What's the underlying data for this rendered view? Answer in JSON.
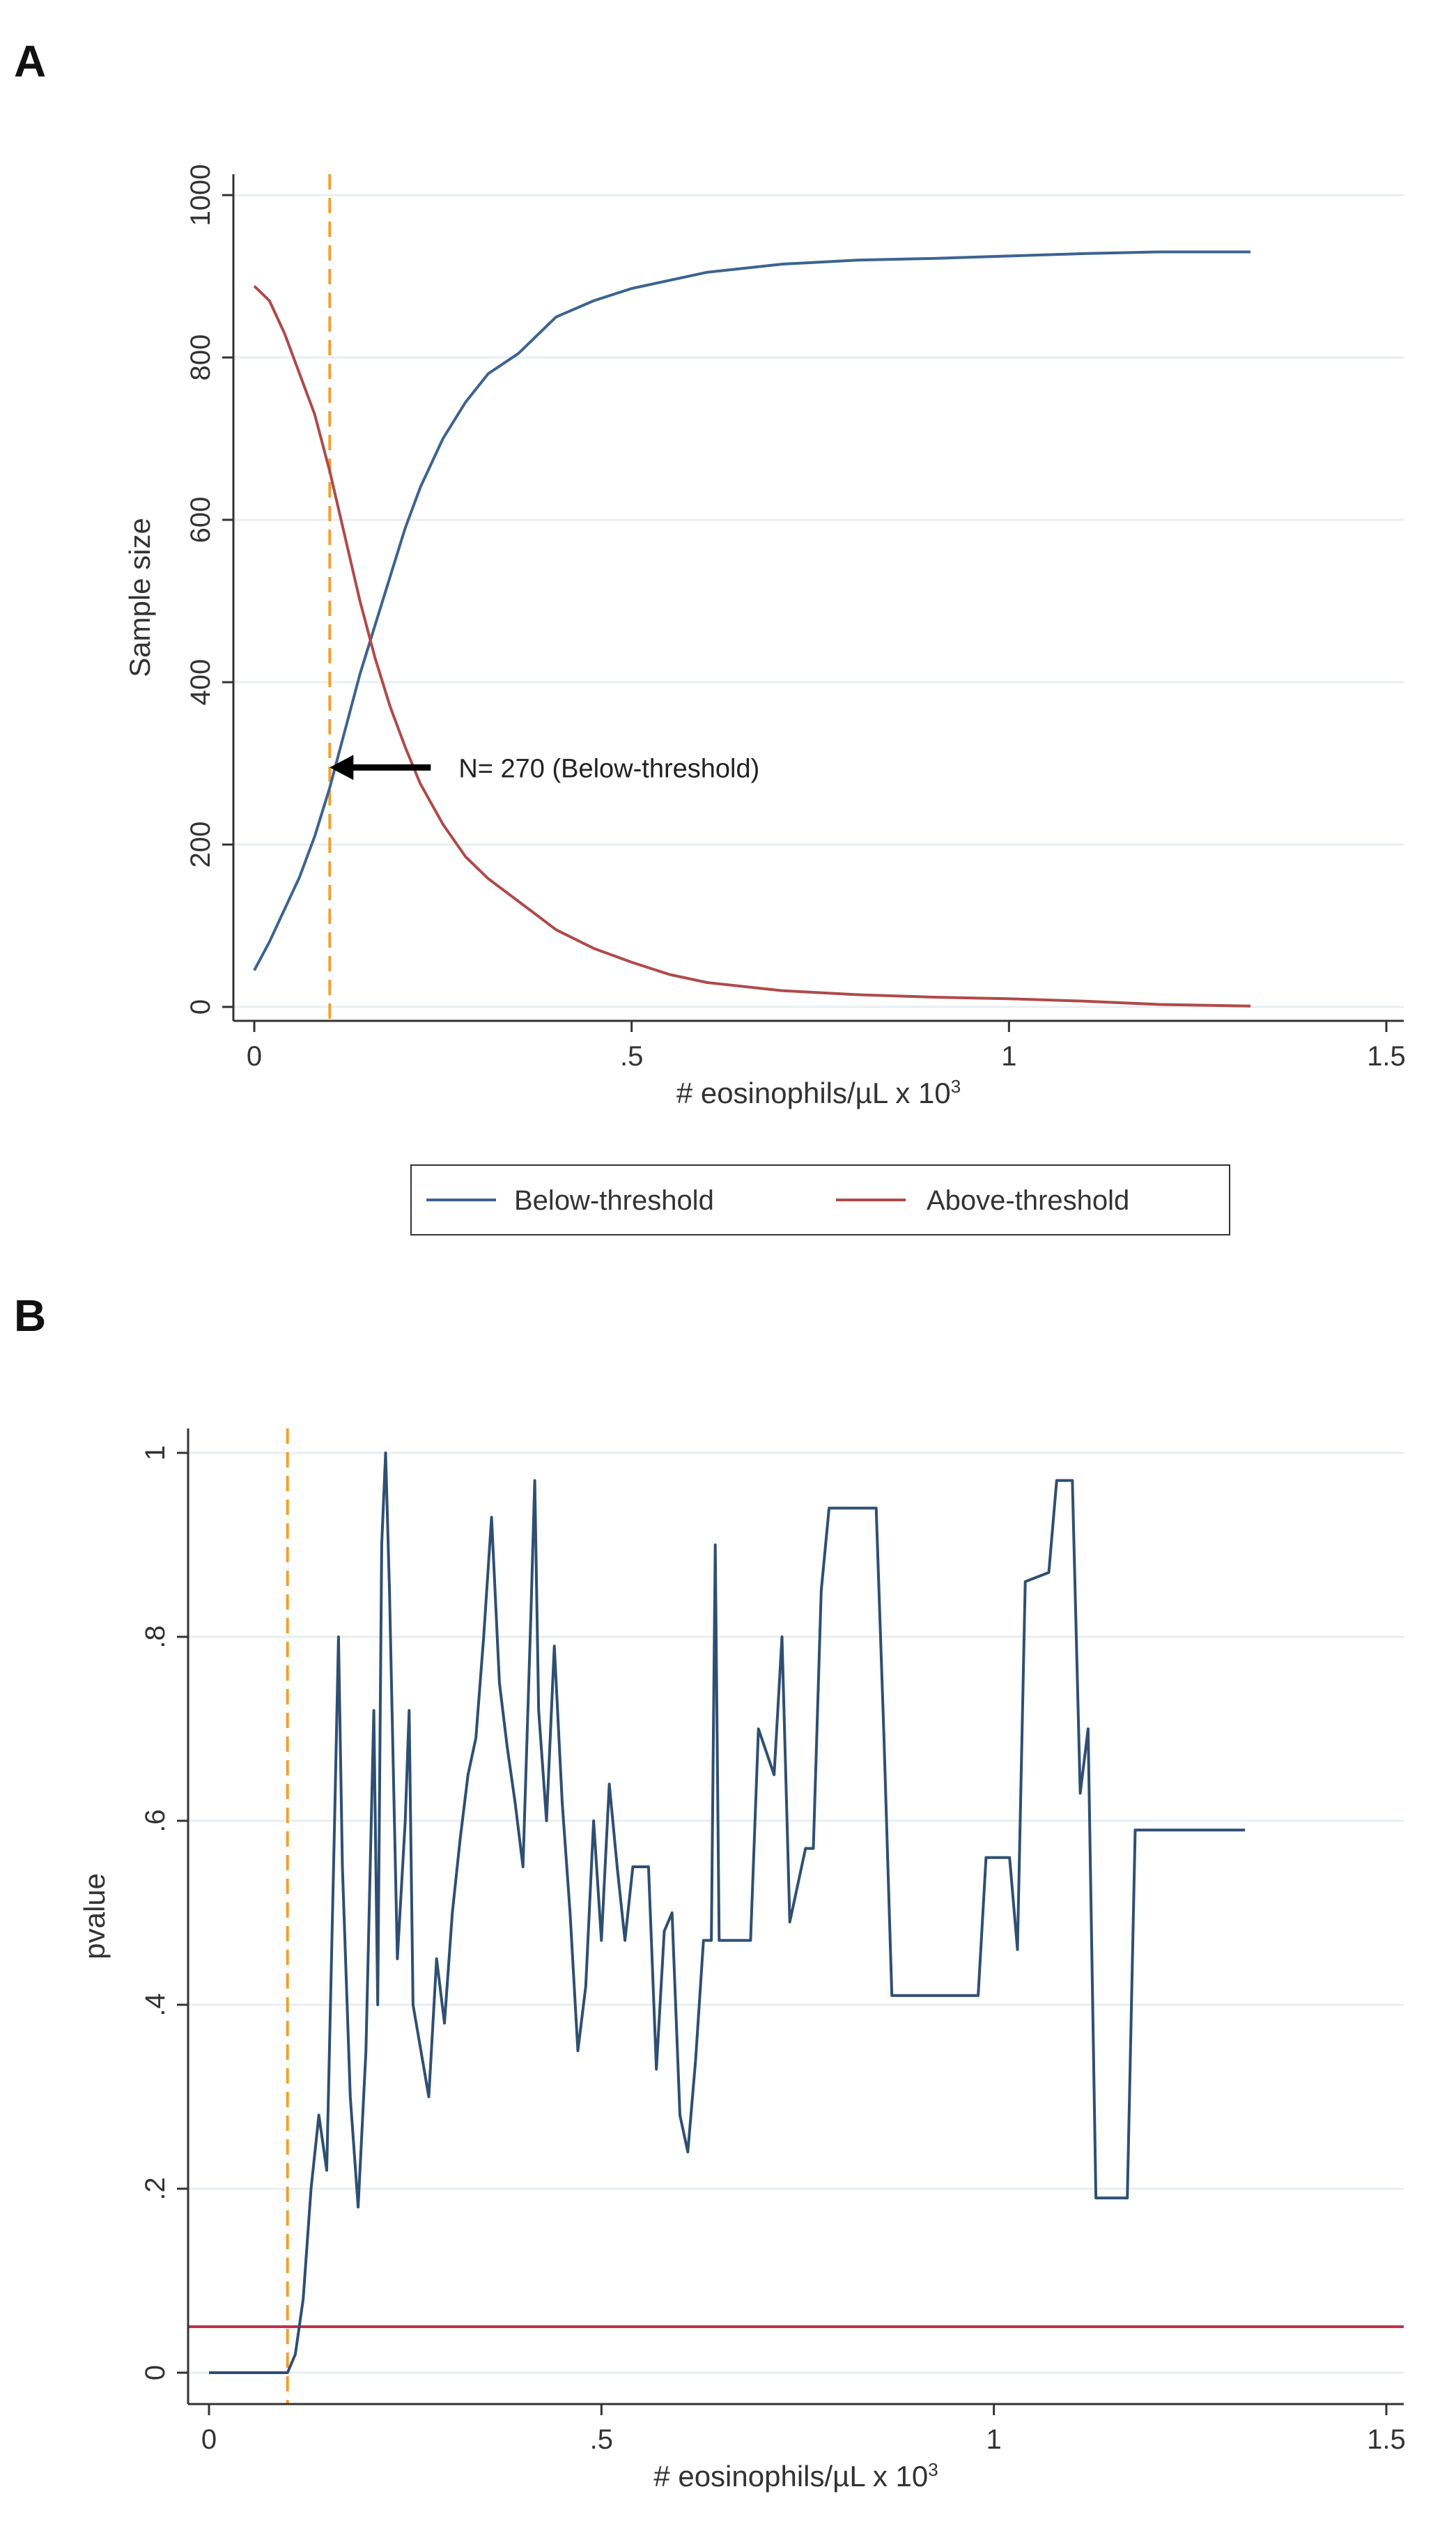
{
  "chart_data": [
    {
      "panel_label": "A",
      "type": "line",
      "xlabel": "# eosinophils/µL x 10",
      "xlabel_sup": "3",
      "ylabel": "Sample size",
      "xlim": [
        0,
        1.5
      ],
      "ylim": [
        0,
        1000
      ],
      "x_ticks": [
        0,
        0.5,
        1,
        1.5
      ],
      "x_tick_labels": [
        "0",
        ".5",
        "1",
        "1.5"
      ],
      "y_ticks": [
        0,
        200,
        400,
        600,
        800,
        1000
      ],
      "y_tick_labels": [
        "0",
        "200",
        "400",
        "600",
        "800",
        "1000"
      ],
      "grid": true,
      "legend_position": "bottom",
      "threshold_x": 0.1,
      "threshold_color": "#f0a030",
      "annotation": {
        "text": "N= 270 (Below-threshold)",
        "x": 0.1,
        "y": 295
      },
      "series": [
        {
          "name": "Below-threshold",
          "color": "#3d6390",
          "points": [
            [
              0,
              45
            ],
            [
              0.02,
              80
            ],
            [
              0.04,
              120
            ],
            [
              0.06,
              160
            ],
            [
              0.08,
              210
            ],
            [
              0.1,
              270
            ],
            [
              0.12,
              340
            ],
            [
              0.14,
              410
            ],
            [
              0.16,
              470
            ],
            [
              0.18,
              530
            ],
            [
              0.2,
              590
            ],
            [
              0.22,
              640
            ],
            [
              0.25,
              700
            ],
            [
              0.28,
              745
            ],
            [
              0.31,
              780
            ],
            [
              0.35,
              805
            ],
            [
              0.4,
              850
            ],
            [
              0.45,
              870
            ],
            [
              0.5,
              885
            ],
            [
              0.6,
              905
            ],
            [
              0.7,
              915
            ],
            [
              0.8,
              920
            ],
            [
              0.9,
              922
            ],
            [
              1.0,
              925
            ],
            [
              1.1,
              928
            ],
            [
              1.2,
              930
            ],
            [
              1.32,
              930
            ]
          ]
        },
        {
          "name": "Above-threshold",
          "color": "#b04a4a",
          "points": [
            [
              0,
              888
            ],
            [
              0.02,
              870
            ],
            [
              0.04,
              830
            ],
            [
              0.06,
              780
            ],
            [
              0.08,
              730
            ],
            [
              0.1,
              660
            ],
            [
              0.12,
              580
            ],
            [
              0.14,
              500
            ],
            [
              0.16,
              430
            ],
            [
              0.18,
              370
            ],
            [
              0.2,
              320
            ],
            [
              0.22,
              275
            ],
            [
              0.25,
              225
            ],
            [
              0.28,
              185
            ],
            [
              0.31,
              158
            ],
            [
              0.35,
              130
            ],
            [
              0.4,
              95
            ],
            [
              0.45,
              72
            ],
            [
              0.5,
              55
            ],
            [
              0.55,
              40
            ],
            [
              0.6,
              30
            ],
            [
              0.7,
              20
            ],
            [
              0.8,
              15
            ],
            [
              0.9,
              12
            ],
            [
              1.0,
              10
            ],
            [
              1.1,
              7
            ],
            [
              1.2,
              3
            ],
            [
              1.32,
              1
            ]
          ]
        }
      ]
    },
    {
      "panel_label": "B",
      "type": "line",
      "xlabel": "# eosinophils/µL x 10",
      "xlabel_sup": "3",
      "ylabel": "pvalue",
      "xlim": [
        0,
        1.5
      ],
      "ylim": [
        0,
        1
      ],
      "x_ticks": [
        0,
        0.5,
        1,
        1.5
      ],
      "x_tick_labels": [
        "0",
        ".5",
        "1",
        "1.5"
      ],
      "y_ticks": [
        0,
        0.2,
        0.4,
        0.6,
        0.8,
        1
      ],
      "y_tick_labels": [
        "0",
        ".2",
        ".4",
        ".6",
        ".8",
        "1"
      ],
      "grid": true,
      "threshold_x": 0.1,
      "threshold_color": "#f0a030",
      "reference_y": 0.05,
      "reference_color": "#c0304a",
      "series": [
        {
          "name": "",
          "color": "#2f4f72",
          "points": [
            [
              0,
              0
            ],
            [
              0.1,
              0
            ],
            [
              0.11,
              0.02
            ],
            [
              0.12,
              0.08
            ],
            [
              0.13,
              0.2
            ],
            [
              0.14,
              0.28
            ],
            [
              0.15,
              0.22
            ],
            [
              0.16,
              0.6
            ],
            [
              0.165,
              0.8
            ],
            [
              0.17,
              0.55
            ],
            [
              0.18,
              0.3
            ],
            [
              0.19,
              0.18
            ],
            [
              0.2,
              0.35
            ],
            [
              0.21,
              0.72
            ],
            [
              0.215,
              0.4
            ],
            [
              0.22,
              0.9
            ],
            [
              0.225,
              1.0
            ],
            [
              0.23,
              0.85
            ],
            [
              0.24,
              0.45
            ],
            [
              0.25,
              0.6
            ],
            [
              0.255,
              0.72
            ],
            [
              0.26,
              0.4
            ],
            [
              0.27,
              0.35
            ],
            [
              0.28,
              0.3
            ],
            [
              0.29,
              0.45
            ],
            [
              0.3,
              0.38
            ],
            [
              0.31,
              0.5
            ],
            [
              0.32,
              0.58
            ],
            [
              0.33,
              0.65
            ],
            [
              0.34,
              0.69
            ],
            [
              0.35,
              0.8
            ],
            [
              0.36,
              0.93
            ],
            [
              0.37,
              0.75
            ],
            [
              0.38,
              0.68
            ],
            [
              0.39,
              0.62
            ],
            [
              0.4,
              0.55
            ],
            [
              0.41,
              0.82
            ],
            [
              0.415,
              0.97
            ],
            [
              0.42,
              0.72
            ],
            [
              0.43,
              0.6
            ],
            [
              0.44,
              0.79
            ],
            [
              0.45,
              0.62
            ],
            [
              0.46,
              0.5
            ],
            [
              0.47,
              0.35
            ],
            [
              0.48,
              0.42
            ],
            [
              0.49,
              0.6
            ],
            [
              0.5,
              0.47
            ],
            [
              0.51,
              0.64
            ],
            [
              0.52,
              0.55
            ],
            [
              0.53,
              0.47
            ],
            [
              0.54,
              0.55
            ],
            [
              0.56,
              0.55
            ],
            [
              0.57,
              0.33
            ],
            [
              0.58,
              0.48
            ],
            [
              0.59,
              0.5
            ],
            [
              0.6,
              0.28
            ],
            [
              0.61,
              0.24
            ],
            [
              0.62,
              0.34
            ],
            [
              0.63,
              0.47
            ],
            [
              0.64,
              0.47
            ],
            [
              0.645,
              0.9
            ],
            [
              0.65,
              0.47
            ],
            [
              0.69,
              0.47
            ],
            [
              0.7,
              0.7
            ],
            [
              0.72,
              0.65
            ],
            [
              0.73,
              0.8
            ],
            [
              0.74,
              0.49
            ],
            [
              0.76,
              0.57
            ],
            [
              0.77,
              0.57
            ],
            [
              0.78,
              0.85
            ],
            [
              0.79,
              0.94
            ],
            [
              0.85,
              0.94
            ],
            [
              0.86,
              0.69
            ],
            [
              0.87,
              0.41
            ],
            [
              0.98,
              0.41
            ],
            [
              0.99,
              0.56
            ],
            [
              1.02,
              0.56
            ],
            [
              1.03,
              0.46
            ],
            [
              1.04,
              0.86
            ],
            [
              1.07,
              0.87
            ],
            [
              1.08,
              0.97
            ],
            [
              1.1,
              0.97
            ],
            [
              1.11,
              0.63
            ],
            [
              1.12,
              0.7
            ],
            [
              1.13,
              0.19
            ],
            [
              1.17,
              0.19
            ],
            [
              1.18,
              0.59
            ],
            [
              1.32,
              0.59
            ]
          ]
        }
      ]
    }
  ],
  "legend": {
    "items": [
      {
        "label": "Below-threshold",
        "color": "#3d6390"
      },
      {
        "label": "Above-threshold",
        "color": "#b04a4a"
      }
    ]
  }
}
